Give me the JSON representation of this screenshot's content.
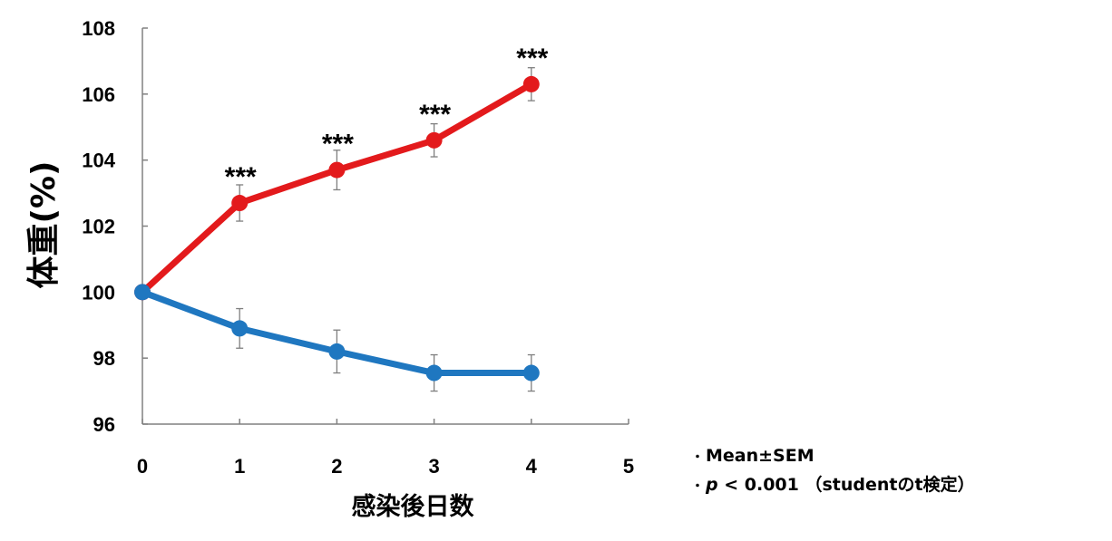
{
  "chart_data": {
    "type": "line",
    "xlabel": "感染後日数",
    "ylabel": "体重(%)",
    "xlim": [
      0,
      5
    ],
    "ylim": [
      96,
      108
    ],
    "x_ticks": [
      "0",
      "1",
      "2",
      "3",
      "4",
      "5"
    ],
    "y_ticks": [
      "96",
      "98",
      "100",
      "102",
      "104",
      "106",
      "108"
    ],
    "grid": false,
    "series": [
      {
        "color": "#e31a1c",
        "x": [
          0,
          1,
          2,
          3,
          4
        ],
        "values": [
          100,
          102.7,
          103.7,
          104.6,
          106.3
        ],
        "error": [
          0,
          0.55,
          0.6,
          0.5,
          0.5
        ]
      },
      {
        "color": "#1f77c0",
        "x": [
          0,
          1,
          2,
          3,
          4
        ],
        "values": [
          100,
          98.9,
          98.2,
          97.55,
          97.55
        ],
        "error": [
          0,
          0.6,
          0.65,
          0.55,
          0.55
        ]
      }
    ],
    "annotations": [
      {
        "x": 1,
        "y": 102.7,
        "text": "***"
      },
      {
        "x": 2,
        "y": 103.7,
        "text": "***"
      },
      {
        "x": 3,
        "y": 104.6,
        "text": "***"
      },
      {
        "x": 4,
        "y": 106.3,
        "text": "***"
      }
    ]
  },
  "notes": {
    "bullet": "・",
    "line1": "Mean±SEM",
    "line2_p": "p",
    "line2_rest": " < 0.001 （studentのt検定）"
  }
}
